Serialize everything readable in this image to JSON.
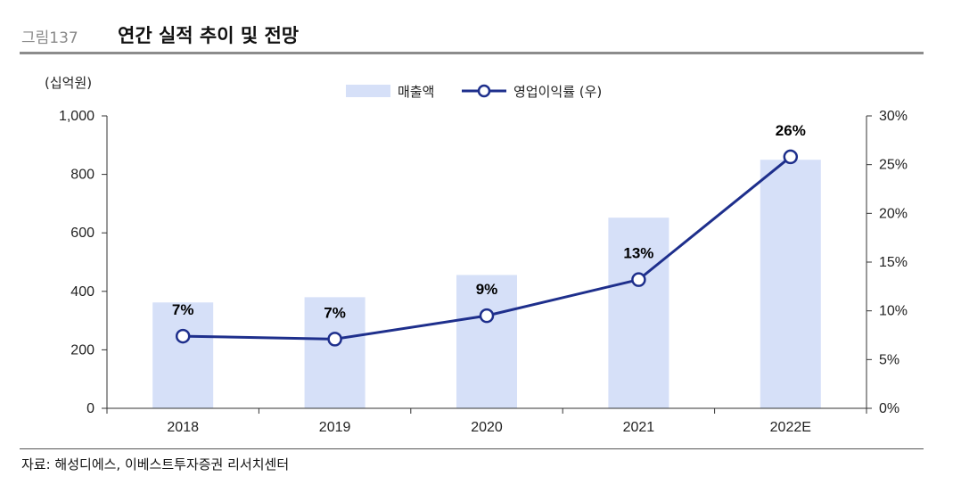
{
  "header": {
    "figure_label": "그림137",
    "title": "연간 실적 추이 및 전망"
  },
  "source": "자료: 해성디에스, 이베스트투자증권 리서치센터",
  "colors": {
    "bar": "#d6e0f8",
    "line": "#1e2f8c",
    "axis": "#333333"
  },
  "chart_data": {
    "type": "bar+line",
    "unit_label": "(십억원)",
    "categories": [
      "2018",
      "2019",
      "2020",
      "2021",
      "2022E"
    ],
    "y_left": {
      "min": 0,
      "max": 1000,
      "ticks": [
        0,
        200,
        400,
        600,
        800,
        1000
      ],
      "tick_labels": [
        "0",
        "200",
        "400",
        "600",
        "800",
        "1,000"
      ]
    },
    "y_right": {
      "min": 0,
      "max": 30,
      "ticks": [
        0,
        5,
        10,
        15,
        20,
        25,
        30
      ],
      "tick_labels": [
        "0%",
        "5%",
        "10%",
        "15%",
        "20%",
        "25%",
        "30%"
      ]
    },
    "series": [
      {
        "name": "매출액",
        "type": "bar",
        "axis": "left",
        "values": [
          362,
          380,
          456,
          652,
          850
        ]
      },
      {
        "name": "영업이익률 (우)",
        "type": "line",
        "axis": "right",
        "values": [
          7.4,
          7.1,
          9.5,
          13.2,
          25.8
        ],
        "labels": [
          "7%",
          "7%",
          "9%",
          "13%",
          "26%"
        ]
      }
    ],
    "legend_position": "top-center",
    "grid": false
  }
}
